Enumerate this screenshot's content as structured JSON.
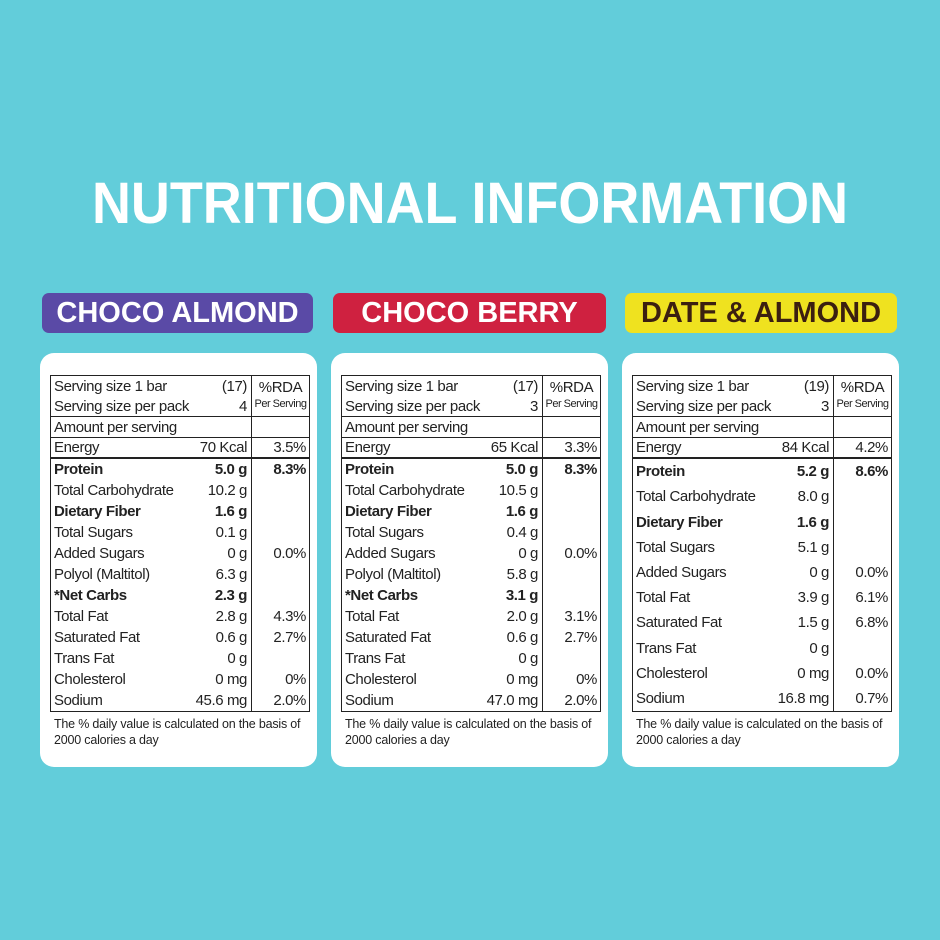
{
  "title": "NUTRITIONAL INFORMATION",
  "panels": [
    {
      "name": "CHOCO ALMOND",
      "serving_size": {
        "label": "Serving size 1 bar",
        "value": "(17)"
      },
      "servings_per_pack": {
        "label": "Serving size per pack",
        "value": "4"
      },
      "rda_header": "%RDA",
      "rda_subheader": "Per Serving",
      "amount_header": "Amount per serving",
      "energy": {
        "label": "Energy",
        "amount": "70 Kcal",
        "rda": "3.5%"
      },
      "nutrients": [
        {
          "name": "Protein",
          "amount": "5.0 g",
          "rda": "8.3%",
          "bold": true
        },
        {
          "name": "Total Carbohydrate",
          "amount": "10.2 g"
        },
        {
          "name": "Dietary Fiber",
          "amount": "1.6 g",
          "bold": true
        },
        {
          "name": "Total Sugars",
          "amount": "0.1 g"
        },
        {
          "name": "Added Sugars",
          "amount": "0 g",
          "rda": "0.0%"
        },
        {
          "name": "Polyol (Maltitol)",
          "amount": "6.3 g"
        },
        {
          "name": "*Net Carbs",
          "amount": "2.3 g",
          "bold": true
        },
        {
          "name": "Total Fat",
          "amount": "2.8 g",
          "rda": "4.3%"
        },
        {
          "name": "Saturated Fat",
          "amount": "0.6 g",
          "rda": "2.7%"
        },
        {
          "name": "Trans Fat",
          "amount": "0 g"
        },
        {
          "name": "Cholesterol",
          "amount": "0 mg",
          "rda": "0%"
        },
        {
          "name": "Sodium",
          "amount": "45.6 mg",
          "rda": "2.0%"
        }
      ],
      "footnote": "The % daily value is calculated on the basis of 2000 calories a day"
    },
    {
      "name": "CHOCO BERRY",
      "serving_size": {
        "label": "Serving size 1 bar",
        "value": "(17)"
      },
      "servings_per_pack": {
        "label": "Serving size per pack",
        "value": "3"
      },
      "rda_header": "%RDA",
      "rda_subheader": "Per Serving",
      "amount_header": "Amount per serving",
      "energy": {
        "label": "Energy",
        "amount": "65 Kcal",
        "rda": "3.3%"
      },
      "nutrients": [
        {
          "name": "Protein",
          "amount": "5.0 g",
          "rda": "8.3%",
          "bold": true
        },
        {
          "name": "Total Carbohydrate",
          "amount": "10.5 g"
        },
        {
          "name": "Dietary Fiber",
          "amount": "1.6 g",
          "bold": true
        },
        {
          "name": "Total Sugars",
          "amount": "0.4 g"
        },
        {
          "name": "Added Sugars",
          "amount": "0 g",
          "rda": "0.0%"
        },
        {
          "name": "Polyol (Maltitol)",
          "amount": "5.8 g"
        },
        {
          "name": "*Net Carbs",
          "amount": "3.1 g",
          "bold": true
        },
        {
          "name": "Total Fat",
          "amount": "2.0 g",
          "rda": "3.1%"
        },
        {
          "name": "Saturated Fat",
          "amount": "0.6 g",
          "rda": "2.7%"
        },
        {
          "name": "Trans Fat",
          "amount": "0 g"
        },
        {
          "name": "Cholesterol",
          "amount": "0 mg",
          "rda": "0%"
        },
        {
          "name": "Sodium",
          "amount": "47.0 mg",
          "rda": "2.0%"
        }
      ],
      "footnote": "The % daily value is calculated on the basis of 2000 calories a day"
    },
    {
      "name": "DATE & ALMOND",
      "serving_size": {
        "label": "Serving size 1 bar",
        "value": "(19)"
      },
      "servings_per_pack": {
        "label": "Serving size per pack",
        "value": "3"
      },
      "rda_header": "%RDA",
      "rda_subheader": "Per Serving",
      "amount_header": "Amount per serving",
      "energy": {
        "label": "Energy",
        "amount": "84 Kcal",
        "rda": "4.2%"
      },
      "nutrients": [
        {
          "name": "Protein",
          "amount": "5.2 g",
          "rda": "8.6%",
          "bold": true
        },
        {
          "name": "Total Carbohydrate",
          "amount": "8.0 g"
        },
        {
          "name": "Dietary Fiber",
          "amount": "1.6 g",
          "bold": true
        },
        {
          "name": "Total Sugars",
          "amount": "5.1 g"
        },
        {
          "name": "Added Sugars",
          "amount": "0 g",
          "rda": "0.0%"
        },
        {
          "name": "Total Fat",
          "amount": "3.9 g",
          "rda": "6.1%"
        },
        {
          "name": "Saturated Fat",
          "amount": "1.5 g",
          "rda": "6.8%"
        },
        {
          "name": "Trans Fat",
          "amount": "0 g"
        },
        {
          "name": "Cholesterol",
          "amount": "0 mg",
          "rda": "0.0%"
        },
        {
          "name": "Sodium",
          "amount": "16.8 mg",
          "rda": "0.7%"
        }
      ],
      "footnote": "The % daily value is calculated on the basis of 2000 calories a day"
    }
  ]
}
